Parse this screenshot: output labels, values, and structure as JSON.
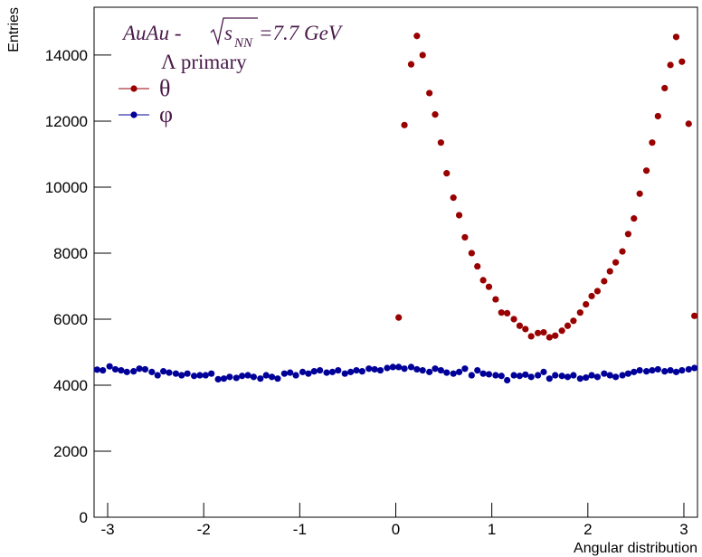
{
  "chart_data": {
    "type": "scatter",
    "annotation": {
      "prefix": "AuAu - ",
      "root_base": "s",
      "subscript": "NN",
      "suffix": "=7.7 GeV"
    },
    "subtitle": "Λ primary",
    "xlabel": "Angular distribution",
    "ylabel": "Entries",
    "xlim": [
      -3.1416,
      3.1416
    ],
    "ylim": [
      0,
      15450
    ],
    "xticks": [
      -3,
      -2,
      -1,
      0,
      1,
      2,
      3
    ],
    "yticks": [
      0,
      2000,
      4000,
      6000,
      8000,
      10000,
      12000,
      14000
    ],
    "series": [
      {
        "name": "θ",
        "color": "#990000",
        "x": [
          0.03,
          0.09,
          0.16,
          0.22,
          0.28,
          0.35,
          0.41,
          0.47,
          0.53,
          0.6,
          0.66,
          0.72,
          0.79,
          0.85,
          0.91,
          0.97,
          1.04,
          1.1,
          1.16,
          1.23,
          1.29,
          1.35,
          1.41,
          1.48,
          1.54,
          1.6,
          1.66,
          1.73,
          1.79,
          1.85,
          1.92,
          1.98,
          2.04,
          2.1,
          2.17,
          2.23,
          2.29,
          2.36,
          2.42,
          2.48,
          2.54,
          2.61,
          2.67,
          2.73,
          2.8,
          2.86,
          2.92,
          2.98,
          3.05,
          3.11
        ],
        "values": [
          6050,
          11880,
          13720,
          14580,
          14000,
          12850,
          12200,
          11350,
          10420,
          9680,
          9150,
          8480,
          8000,
          7600,
          7180,
          6980,
          6600,
          6200,
          6180,
          6000,
          5800,
          5700,
          5480,
          5580,
          5600,
          5450,
          5500,
          5650,
          5800,
          5950,
          6200,
          6450,
          6700,
          6850,
          7150,
          7450,
          7720,
          8050,
          8580,
          9050,
          9800,
          10500,
          11350,
          12150,
          13000,
          13700,
          14550,
          13800,
          11920,
          6100
        ]
      },
      {
        "name": "φ",
        "color": "#000099",
        "x": [
          -3.11,
          -3.05,
          -2.98,
          -2.92,
          -2.86,
          -2.8,
          -2.73,
          -2.67,
          -2.61,
          -2.54,
          -2.48,
          -2.42,
          -2.36,
          -2.29,
          -2.23,
          -2.17,
          -2.1,
          -2.04,
          -1.98,
          -1.92,
          -1.85,
          -1.79,
          -1.73,
          -1.66,
          -1.6,
          -1.54,
          -1.48,
          -1.41,
          -1.35,
          -1.29,
          -1.23,
          -1.16,
          -1.1,
          -1.04,
          -0.97,
          -0.91,
          -0.85,
          -0.79,
          -0.72,
          -0.66,
          -0.6,
          -0.53,
          -0.47,
          -0.41,
          -0.35,
          -0.28,
          -0.22,
          -0.16,
          -0.09,
          -0.03,
          0.03,
          0.09,
          0.16,
          0.22,
          0.28,
          0.35,
          0.41,
          0.47,
          0.53,
          0.6,
          0.66,
          0.72,
          0.79,
          0.85,
          0.91,
          0.97,
          1.04,
          1.1,
          1.16,
          1.23,
          1.29,
          1.35,
          1.41,
          1.48,
          1.54,
          1.6,
          1.66,
          1.73,
          1.79,
          1.85,
          1.92,
          1.98,
          2.04,
          2.1,
          2.17,
          2.23,
          2.29,
          2.36,
          2.42,
          2.48,
          2.54,
          2.61,
          2.67,
          2.73,
          2.8,
          2.86,
          2.92,
          2.98,
          3.05,
          3.11
        ],
        "values": [
          4470,
          4450,
          4570,
          4480,
          4450,
          4400,
          4420,
          4500,
          4480,
          4400,
          4300,
          4420,
          4380,
          4350,
          4300,
          4350,
          4280,
          4300,
          4300,
          4350,
          4180,
          4200,
          4250,
          4220,
          4280,
          4300,
          4250,
          4200,
          4300,
          4250,
          4200,
          4350,
          4380,
          4300,
          4400,
          4350,
          4420,
          4450,
          4380,
          4400,
          4450,
          4350,
          4400,
          4450,
          4420,
          4500,
          4480,
          4450,
          4520,
          4550,
          4550,
          4500,
          4550,
          4480,
          4450,
          4400,
          4500,
          4450,
          4380,
          4350,
          4400,
          4500,
          4300,
          4450,
          4350,
          4330,
          4300,
          4280,
          4150,
          4300,
          4280,
          4320,
          4250,
          4300,
          4400,
          4200,
          4300,
          4280,
          4250,
          4300,
          4200,
          4230,
          4300,
          4250,
          4350,
          4300,
          4250,
          4300,
          4350,
          4400,
          4450,
          4420,
          4450,
          4480,
          4420,
          4450,
          4400,
          4450,
          4480,
          4520
        ]
      }
    ]
  }
}
